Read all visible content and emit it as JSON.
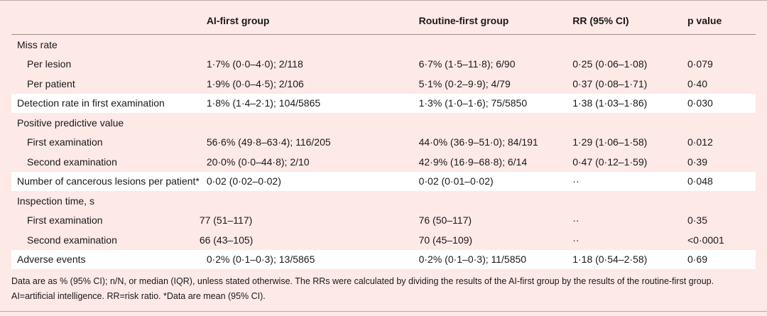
{
  "headers": [
    "",
    "AI-first group",
    "Routine-first group",
    "RR (95% CI)",
    "p value"
  ],
  "rows": [
    {
      "label": "Miss rate",
      "sub": false,
      "white": false,
      "ai": "",
      "routine": "",
      "rr": "",
      "p": ""
    },
    {
      "label": "Per lesion",
      "sub": true,
      "white": false,
      "ai": "1·7% (0·0–4·0); 2/118",
      "routine": "6·7% (1·5–11·8); 6/90",
      "rr": "0·25 (0·06–1·08)",
      "p": "0·079"
    },
    {
      "label": "Per patient",
      "sub": true,
      "white": false,
      "ai": "1·9% (0·0–4·5); 2/106",
      "routine": "5·1% (0·2–9·9); 4/79",
      "rr": "0·37 (0·08–1·71)",
      "p": "0·40"
    },
    {
      "label": "Detection rate in first examination",
      "sub": false,
      "white": true,
      "ai": "1·8% (1·4–2·1); 104/5865",
      "routine": "1·3% (1·0–1·6); 75/5850",
      "rr": "1·38 (1·03–1·86)",
      "p": "0·030"
    },
    {
      "label": "Positive predictive value",
      "sub": false,
      "white": false,
      "ai": "",
      "routine": "",
      "rr": "",
      "p": ""
    },
    {
      "label": "First examination",
      "sub": true,
      "white": false,
      "ai": "56·6% (49·8–63·4); 116/205",
      "routine": "44·0% (36·9–51·0); 84/191",
      "rr": "1·29 (1·06–1·58)",
      "p": "0·012"
    },
    {
      "label": "Second examination",
      "sub": true,
      "white": false,
      "ai": "20·0% (0·0–44·8); 2/10",
      "routine": "42·9% (16·9–68·8); 6/14",
      "rr": "0·47 (0·12–1·59)",
      "p": "0·39"
    },
    {
      "label": "Number of cancerous lesions per patient*",
      "sub": false,
      "white": true,
      "ai": "0·02 (0·02–0·02)",
      "routine": "0·02 (0·01–0·02)",
      "rr": "··",
      "p": "0·048"
    },
    {
      "label": "Inspection time, s",
      "sub": false,
      "white": false,
      "ai": "",
      "routine": "",
      "rr": "",
      "p": ""
    },
    {
      "label": "First examination",
      "sub": true,
      "white": false,
      "ai": "77 (51–117)",
      "routine": "76 (50–117)",
      "rr": "··",
      "p": "0·35"
    },
    {
      "label": "Second examination",
      "sub": true,
      "white": false,
      "ai": "66 (43–105)",
      "routine": "70 (45–109)",
      "rr": "··",
      "p": "<0·0001"
    },
    {
      "label": "Adverse events",
      "sub": false,
      "white": true,
      "ai": "0·2% (0·1–0·3); 13/5865",
      "routine": "0·2% (0·1–0·3); 11/5850",
      "rr": "1·18 (0·54–2·58)",
      "p": "0·69"
    }
  ],
  "footnote": "Data are as % (95% CI); n/N, or median (IQR), unless stated otherwise. The RRs were calculated by dividing the results of the AI-first group by the results of the routine-first group. AI=artificial intelligence. RR=risk ratio. *Data are mean (95% CI)."
}
